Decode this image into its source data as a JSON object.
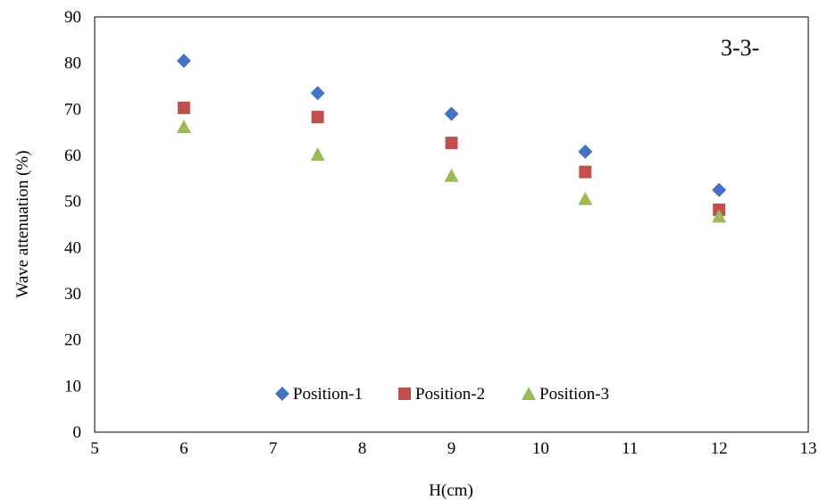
{
  "chart_data": {
    "type": "scatter",
    "xlabel": "H(cm)",
    "ylabel": "Wave attenuation (%)",
    "annotation": "3-3-",
    "xlim": [
      5,
      13
    ],
    "ylim": [
      0,
      90
    ],
    "x_ticks": [
      5,
      6,
      7,
      8,
      9,
      10,
      11,
      12,
      13
    ],
    "y_ticks": [
      0,
      10,
      20,
      30,
      40,
      50,
      60,
      70,
      80,
      90
    ],
    "grid": false,
    "legend_position": "bottom-center",
    "x": [
      6,
      7.5,
      9,
      10.5,
      12
    ],
    "series": [
      {
        "name": "Position-1",
        "marker": "diamond",
        "color": "#4472C4",
        "values": [
          80.5,
          73.5,
          69,
          60.8,
          52.5
        ]
      },
      {
        "name": "Position-2",
        "marker": "square",
        "color": "#C0504D",
        "values": [
          70.3,
          68.3,
          62.7,
          56.4,
          48.2
        ]
      },
      {
        "name": "Position-3",
        "marker": "triangle",
        "color": "#9BBB59",
        "values": [
          66.2,
          60.2,
          55.6,
          50.6,
          46.8
        ]
      }
    ]
  }
}
